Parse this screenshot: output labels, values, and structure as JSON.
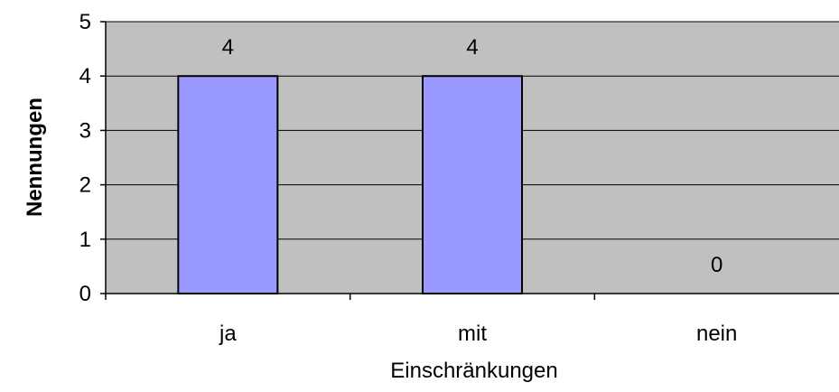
{
  "chart_data": {
    "type": "bar",
    "categories": [
      "ja",
      "mit",
      "nein"
    ],
    "values": [
      4,
      4,
      0
    ],
    "data_labels": [
      "4",
      "4",
      "0"
    ],
    "title": "",
    "xlabel": "Einschränkungen",
    "ylabel": "Nennungen",
    "ylim": [
      0,
      5
    ],
    "yticks": [
      "0",
      "1",
      "2",
      "3",
      "4",
      "5"
    ],
    "grid": true,
    "legend": "none",
    "colors": {
      "plot_background": "#c0c0c0",
      "bar_fill": "#9999ff",
      "bar_stroke": "#000000",
      "grid": "#000000",
      "axis": "#000000"
    }
  }
}
